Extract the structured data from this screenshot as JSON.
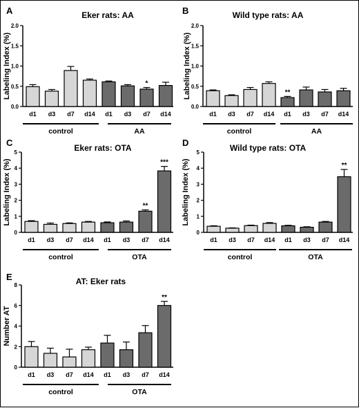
{
  "chart_data": [
    {
      "id": "A",
      "type": "bar",
      "panel_label": "A",
      "title": "Eker rats:  AA",
      "ylabel": "Labeling Index (%)",
      "ylim": [
        0,
        2.0
      ],
      "yticks": [
        0.0,
        0.5,
        1.0,
        1.5,
        2.0
      ],
      "ytick_labels": [
        "0.0",
        "0.5",
        "1.0",
        "1.5",
        "2.0"
      ],
      "categories": [
        "d1",
        "d3",
        "d7",
        "d14",
        "d1",
        "d3",
        "d7",
        "d14"
      ],
      "values": [
        0.49,
        0.38,
        0.89,
        0.65,
        0.61,
        0.51,
        0.43,
        0.52
      ],
      "errors": [
        0.05,
        0.04,
        0.1,
        0.03,
        0.02,
        0.03,
        0.04,
        0.08
      ],
      "bar_colors": [
        "light",
        "light",
        "light",
        "light",
        "dark",
        "dark",
        "dark",
        "dark"
      ],
      "significance": [
        "",
        "",
        "",
        "",
        "",
        "",
        "*",
        ""
      ],
      "groups": [
        {
          "label": "control",
          "from": 0,
          "to": 3
        },
        {
          "label": "AA",
          "from": 4,
          "to": 7
        }
      ]
    },
    {
      "id": "B",
      "type": "bar",
      "panel_label": "B",
      "title": "Wild type rats: AA",
      "ylabel": "Labeling Index (%)",
      "ylim": [
        0,
        2.0
      ],
      "yticks": [
        0.0,
        0.5,
        1.0,
        1.5,
        2.0
      ],
      "ytick_labels": [
        "0.0",
        "0.5",
        "1.0",
        "1.5",
        "2.0"
      ],
      "categories": [
        "d1",
        "d3",
        "d7",
        "d14",
        "d1",
        "d3",
        "d7",
        "d14"
      ],
      "values": [
        0.39,
        0.27,
        0.42,
        0.57,
        0.22,
        0.41,
        0.36,
        0.39
      ],
      "errors": [
        0.02,
        0.02,
        0.05,
        0.04,
        0.03,
        0.07,
        0.06,
        0.06
      ],
      "bar_colors": [
        "light",
        "light",
        "light",
        "light",
        "dark",
        "dark",
        "dark",
        "dark"
      ],
      "significance": [
        "",
        "",
        "",
        "",
        "**",
        "",
        "",
        ""
      ],
      "groups": [
        {
          "label": "control",
          "from": 0,
          "to": 3
        },
        {
          "label": "AA",
          "from": 4,
          "to": 7
        }
      ]
    },
    {
      "id": "C",
      "type": "bar",
      "panel_label": "C",
      "title": "Eker rats:  OTA",
      "ylabel": "Labeling Index (%)",
      "ylim": [
        0,
        5
      ],
      "yticks": [
        0,
        1,
        2,
        3,
        4,
        5
      ],
      "ytick_labels": [
        "0",
        "1",
        "2",
        "3",
        "4",
        "5"
      ],
      "categories": [
        "d1",
        "d3",
        "d7",
        "d14",
        "d1",
        "d3",
        "d7",
        "d14"
      ],
      "values": [
        0.68,
        0.5,
        0.55,
        0.64,
        0.6,
        0.64,
        1.32,
        3.83
      ],
      "errors": [
        0.05,
        0.08,
        0.04,
        0.04,
        0.05,
        0.07,
        0.08,
        0.28
      ],
      "bar_colors": [
        "light",
        "light",
        "light",
        "light",
        "dark",
        "dark",
        "dark",
        "dark"
      ],
      "significance": [
        "",
        "",
        "",
        "",
        "",
        "",
        "**",
        "***"
      ],
      "groups": [
        {
          "label": "control",
          "from": 0,
          "to": 3
        },
        {
          "label": "OTA",
          "from": 4,
          "to": 7
        }
      ]
    },
    {
      "id": "D",
      "type": "bar",
      "panel_label": "D",
      "title": "Wild type rats:  OTA",
      "ylabel": "Labeling Index (%)",
      "ylim": [
        0,
        5
      ],
      "yticks": [
        0,
        1,
        2,
        3,
        4,
        5
      ],
      "ytick_labels": [
        "0",
        "1",
        "2",
        "3",
        "4",
        "5"
      ],
      "categories": [
        "d1",
        "d3",
        "d7",
        "d14",
        "d1",
        "d3",
        "d7",
        "d14"
      ],
      "values": [
        0.38,
        0.26,
        0.42,
        0.56,
        0.41,
        0.32,
        0.64,
        3.47
      ],
      "errors": [
        0.03,
        0.02,
        0.03,
        0.05,
        0.03,
        0.03,
        0.04,
        0.45
      ],
      "bar_colors": [
        "light",
        "light",
        "light",
        "light",
        "dark",
        "dark",
        "dark",
        "dark"
      ],
      "significance": [
        "",
        "",
        "",
        "",
        "",
        "",
        "",
        "**"
      ],
      "groups": [
        {
          "label": "control",
          "from": 0,
          "to": 3
        },
        {
          "label": "OTA",
          "from": 4,
          "to": 7
        }
      ]
    },
    {
      "id": "E",
      "type": "bar",
      "panel_label": "E",
      "title": "AT: Eker rats",
      "ylabel": "Number AT",
      "ylim": [
        0,
        8
      ],
      "yticks": [
        0,
        2,
        4,
        6,
        8
      ],
      "ytick_labels": [
        "0",
        "2",
        "4",
        "6",
        "8"
      ],
      "categories": [
        "d1",
        "d3",
        "d7",
        "d14",
        "d1",
        "d3",
        "d7",
        "d14"
      ],
      "values": [
        2.0,
        1.35,
        1.0,
        1.7,
        2.35,
        1.7,
        3.35,
        6.0
      ],
      "errors": [
        0.5,
        0.5,
        0.75,
        0.25,
        0.75,
        0.75,
        0.7,
        0.4
      ],
      "bar_colors": [
        "light",
        "light",
        "light",
        "light",
        "dark",
        "dark",
        "dark",
        "dark"
      ],
      "significance": [
        "",
        "",
        "",
        "",
        "",
        "",
        "",
        "**"
      ],
      "groups": [
        {
          "label": "control",
          "from": 0,
          "to": 3
        },
        {
          "label": "OTA",
          "from": 4,
          "to": 7
        }
      ]
    }
  ],
  "colors": {
    "light_bar": "#d6d6d6",
    "dark_bar": "#6b6b6b",
    "axis": "#000000"
  }
}
